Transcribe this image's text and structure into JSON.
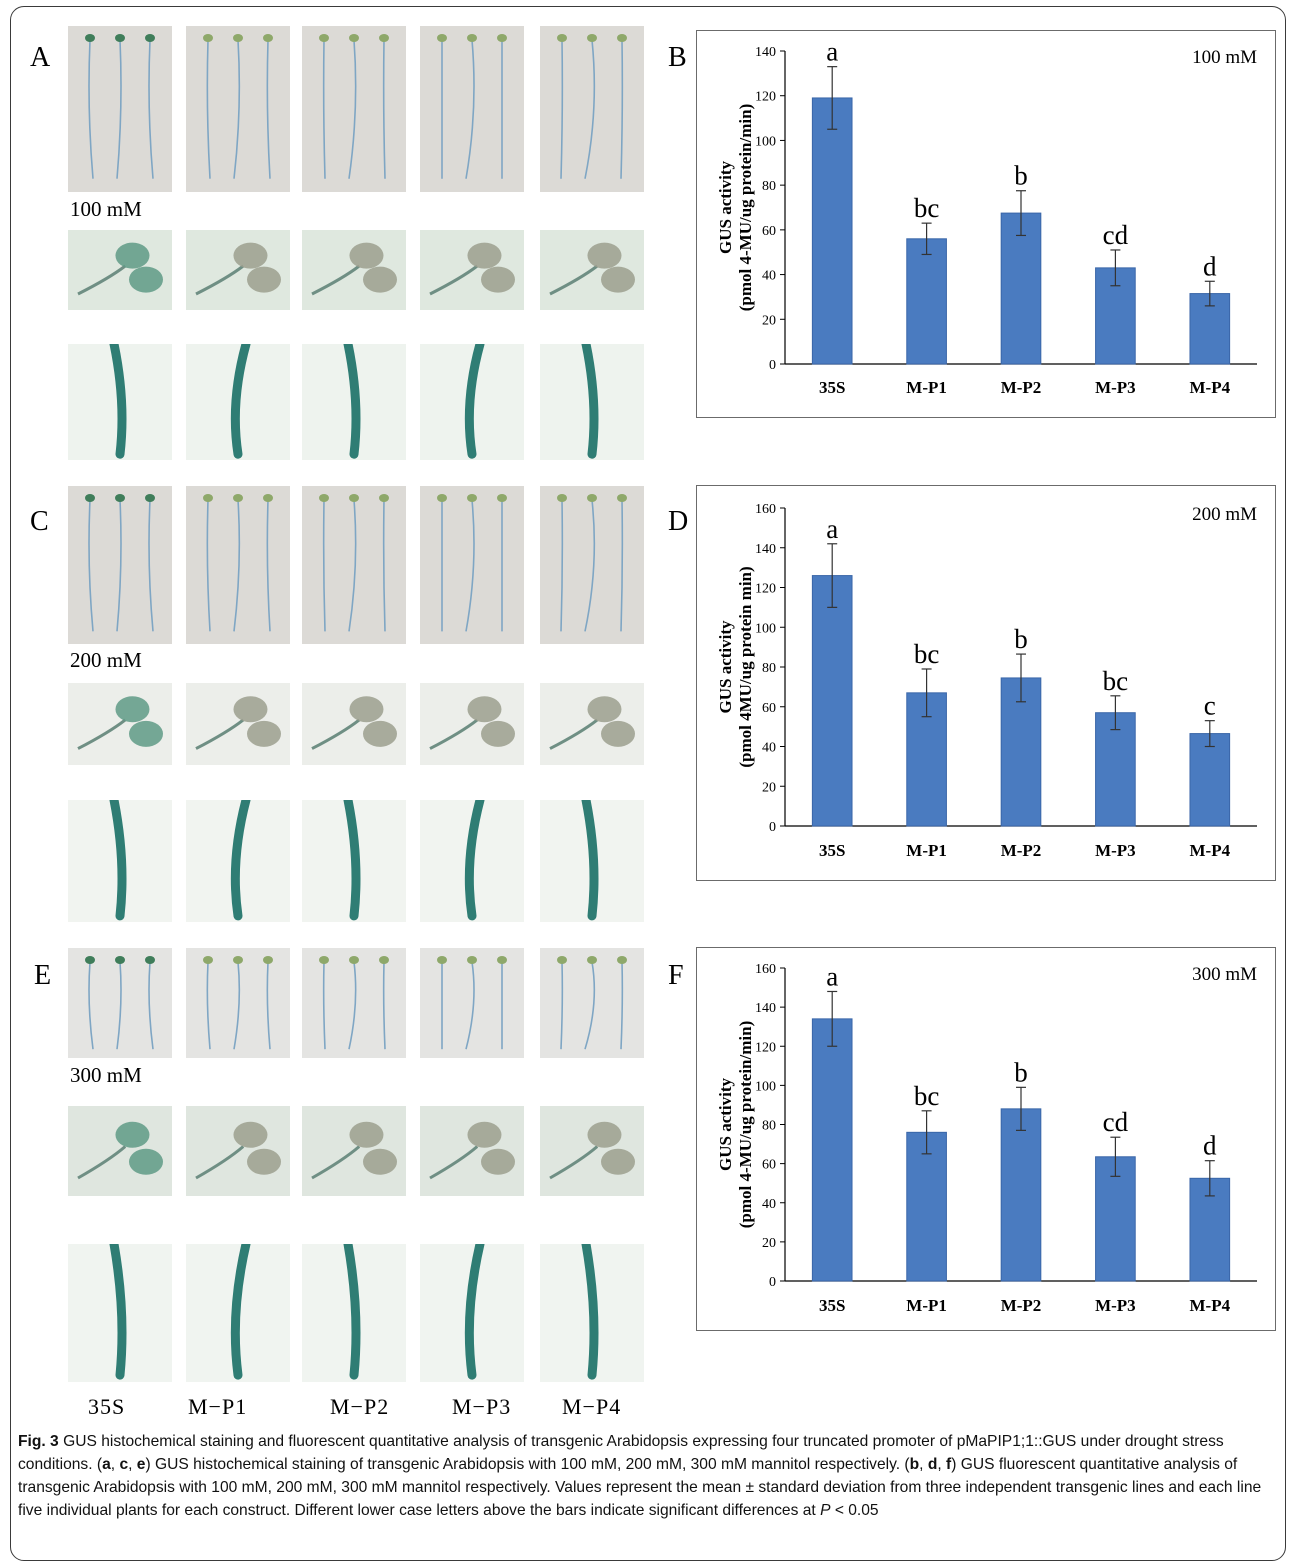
{
  "figure": {
    "panel_letters": [
      "A",
      "B",
      "C",
      "D",
      "E",
      "F"
    ],
    "concentrations": [
      "100 mM",
      "200 mM",
      "300 mM"
    ],
    "construct_labels": [
      "35S",
      "M−P1",
      "M−P2",
      "M−P3",
      "M−P4"
    ],
    "photo_rows": {
      "A": [
        "seedlings",
        "cotyledons",
        "roots"
      ],
      "C": [
        "seedlings",
        "cotyledons",
        "roots"
      ],
      "E": [
        "seedlings",
        "cotyledons",
        "roots"
      ]
    }
  },
  "caption": {
    "fig_label": "Fig. 3",
    "text_1": " GUS histochemical staining and fluorescent quantitative analysis of transgenic Arabidopsis expressing four truncated promoter of pMaPIP1;1::GUS under drought stress conditions. (",
    "refs_1": [
      "a",
      "c",
      "e"
    ],
    "text_2": ") GUS histochemical staining of transgenic Arabidopsis with 100 mM, 200 mM, 300 mM mannitol respectively. (",
    "refs_2": [
      "b",
      "d",
      "f"
    ],
    "text_3": ") GUS fluorescent quantitative analysis of transgenic Arabidopsis with 100 mM, 200 mM, 300 mM mannitol respectively. Values represent the mean ± standard deviation from three independent transgenic lines and each line five individual plants for each construct. Different lower case letters above the bars indicate significant differences at ",
    "p_symbol": "P",
    "text_4": " < 0.05"
  },
  "colors": {
    "bar": "#4a7bc0",
    "bar_edge": "#3a66a8",
    "error": "#333333"
  },
  "chart_data": [
    {
      "panel": "B",
      "type": "bar",
      "condition": "100 mM",
      "categories": [
        "35S",
        "M-P1",
        "M-P2",
        "M-P3",
        "M-P4"
      ],
      "values": [
        119,
        56,
        67.5,
        43,
        31.5
      ],
      "errors": [
        14,
        7,
        10,
        8,
        5.5
      ],
      "significance": [
        "a",
        "bc",
        "b",
        "cd",
        "d"
      ],
      "ylabel_line1": "GUS activity",
      "ylabel_line2": "(pmol 4-MU/ug protein/min)",
      "ylim": [
        0,
        140
      ],
      "yticks": [
        0,
        20,
        40,
        60,
        80,
        100,
        120,
        140
      ]
    },
    {
      "panel": "D",
      "type": "bar",
      "condition": "200 mM",
      "categories": [
        "35S",
        "M-P1",
        "M-P2",
        "M-P3",
        "M-P4"
      ],
      "values": [
        126,
        67,
        74.5,
        57,
        46.5
      ],
      "errors": [
        16,
        12,
        12,
        8.5,
        6.5
      ],
      "significance": [
        "a",
        "bc",
        "b",
        "bc",
        "c"
      ],
      "ylabel_line1": "GUS activity",
      "ylabel_line2": "(pmol 4MU/ug protein min)",
      "ylim": [
        0,
        160
      ],
      "yticks": [
        0,
        20,
        40,
        60,
        80,
        100,
        120,
        140,
        160
      ]
    },
    {
      "panel": "F",
      "type": "bar",
      "condition": "300 mM",
      "categories": [
        "35S",
        "M-P1",
        "M-P2",
        "M-P3",
        "M-P4"
      ],
      "values": [
        134,
        76,
        88,
        63.5,
        52.5
      ],
      "errors": [
        14,
        11,
        11,
        10,
        9
      ],
      "significance": [
        "a",
        "bc",
        "b",
        "cd",
        "d"
      ],
      "ylabel_line1": "GUS activity",
      "ylabel_line2": "(pmol 4-MU/ug protein/min)",
      "ylim": [
        0,
        160
      ],
      "yticks": [
        0,
        20,
        40,
        60,
        80,
        100,
        120,
        140,
        160
      ]
    }
  ]
}
